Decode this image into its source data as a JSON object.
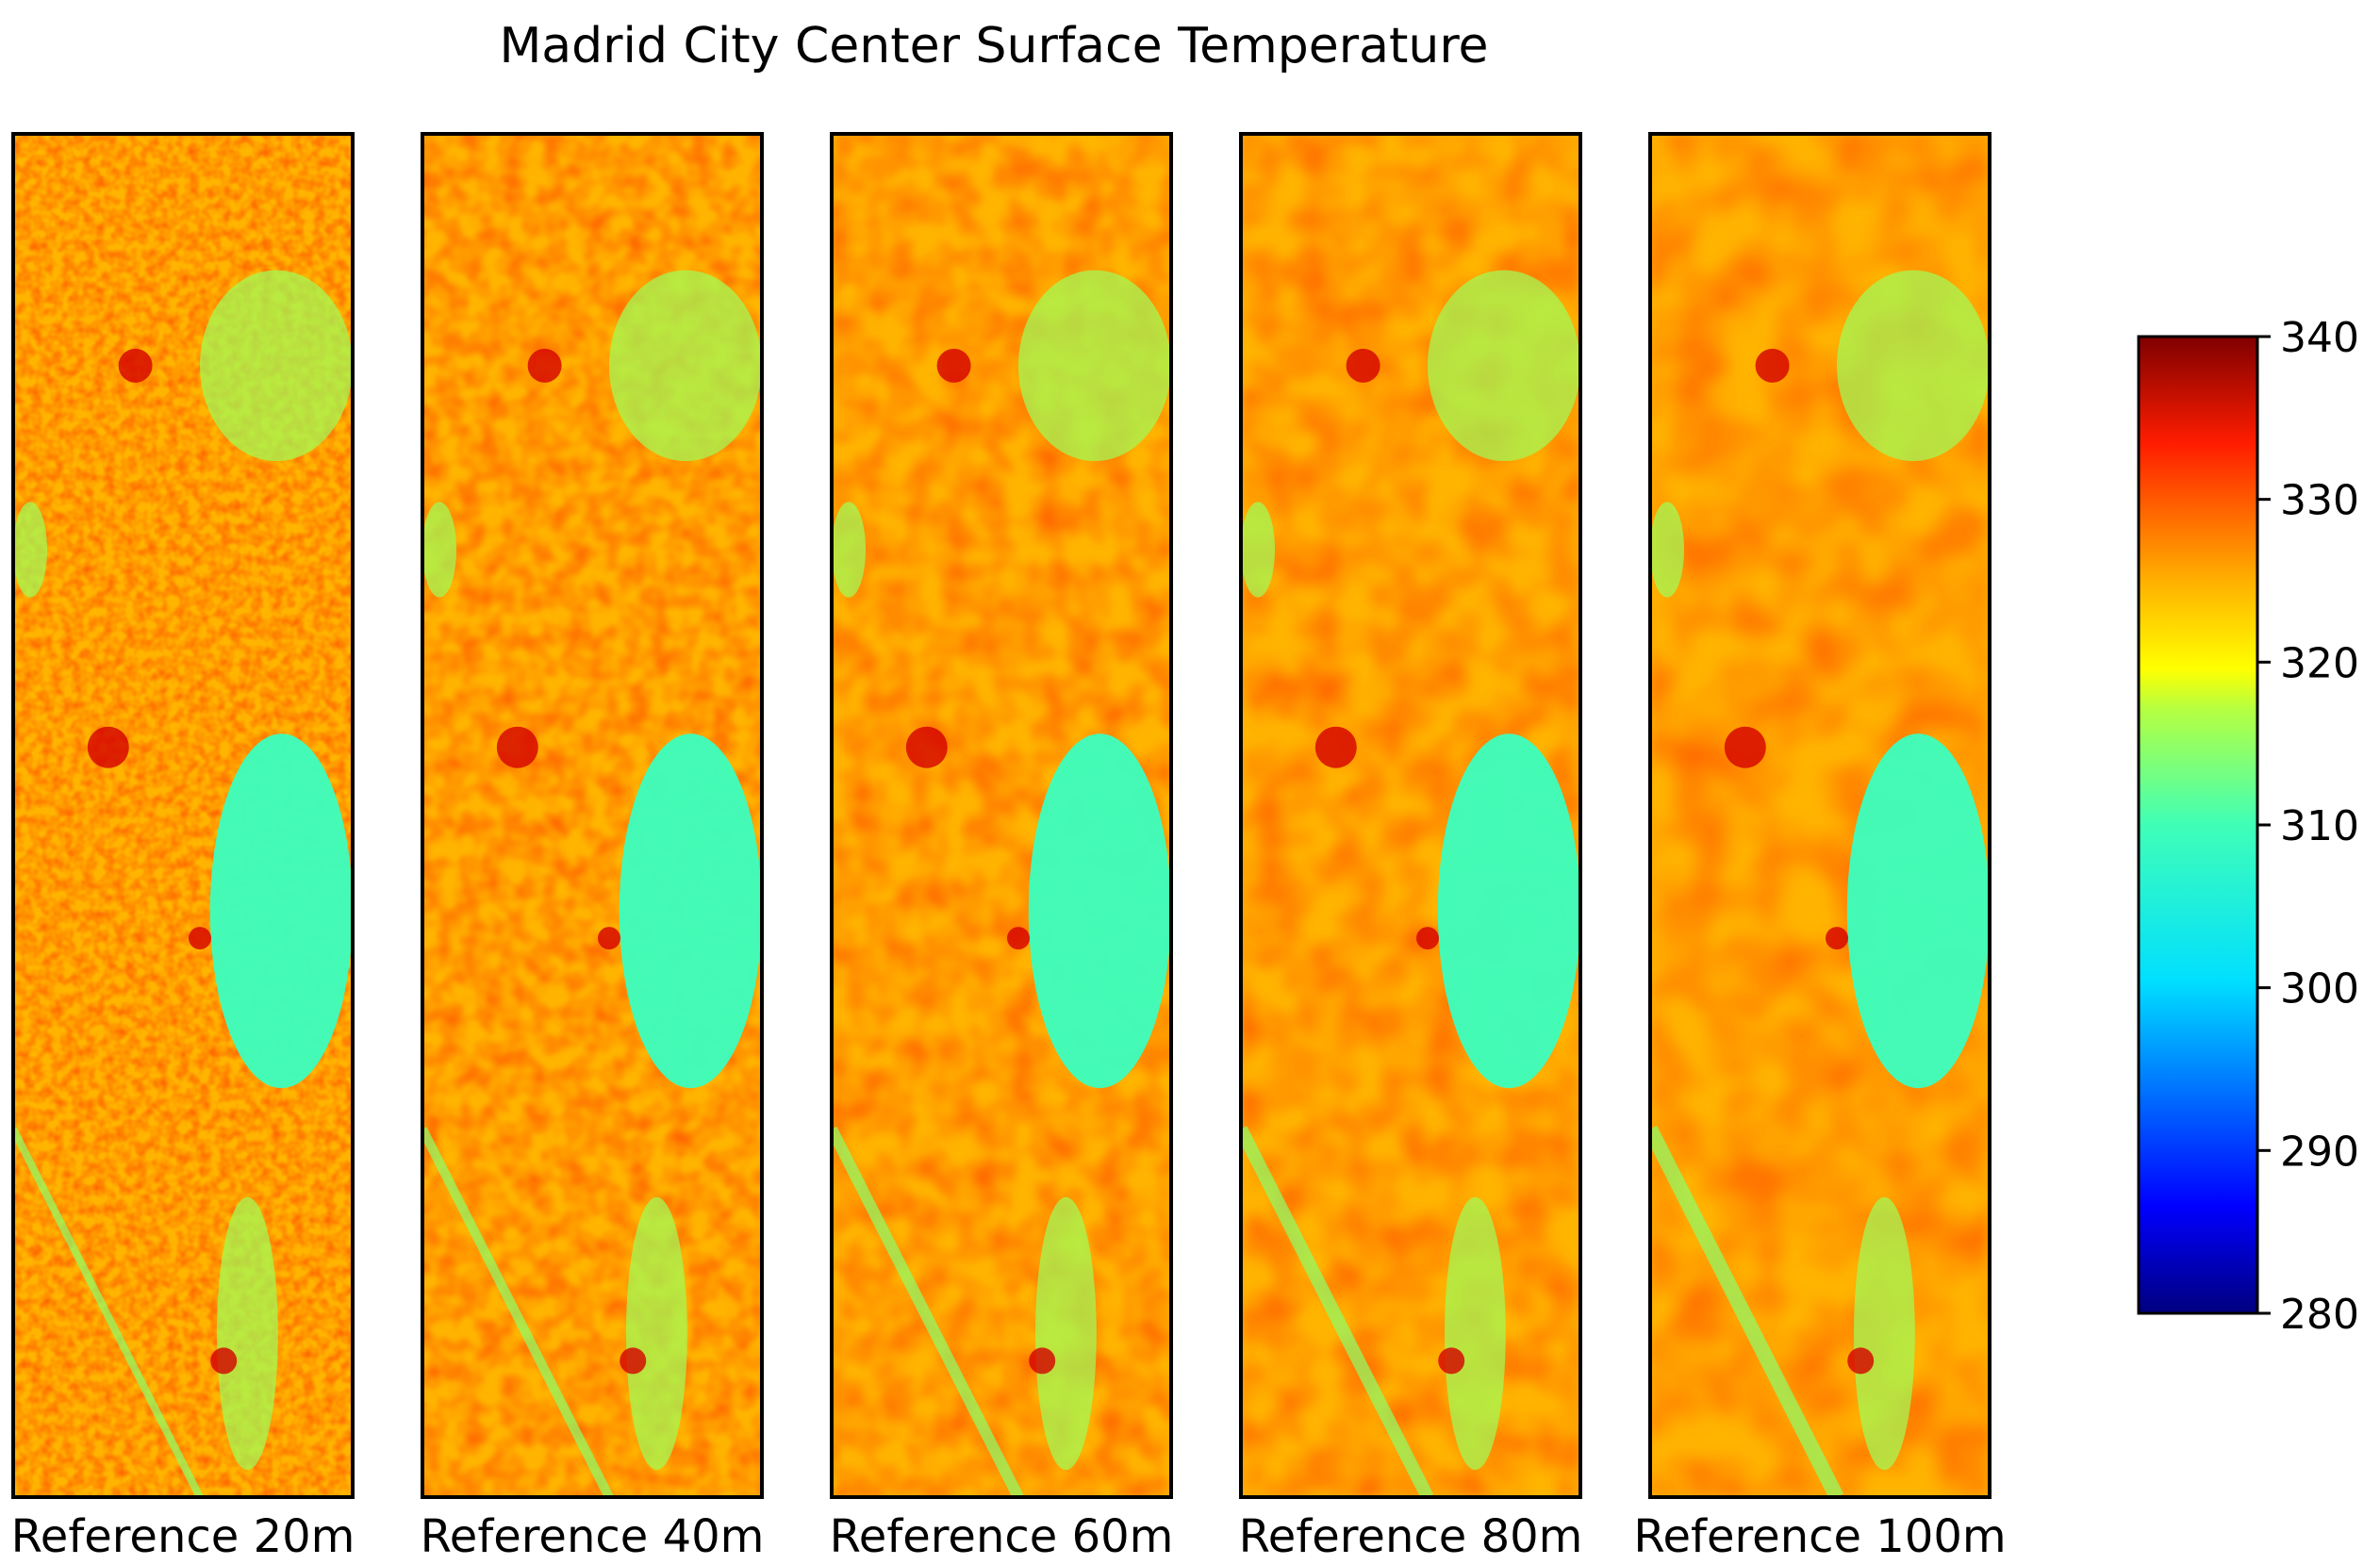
{
  "chart_data": {
    "type": "heatmap",
    "title": "Madrid City Center Surface Temperature",
    "panels": [
      {
        "label": "Reference 20m",
        "resolution_m": 20
      },
      {
        "label": "Reference 40m",
        "resolution_m": 40
      },
      {
        "label": "Reference 60m",
        "resolution_m": 60
      },
      {
        "label": "Reference 80m",
        "resolution_m": 80
      },
      {
        "label": "Reference 100m",
        "resolution_m": 100
      }
    ],
    "colorbar": {
      "colormap": "jet",
      "range": [
        280,
        340
      ],
      "ticks": [
        "340",
        "330",
        "320",
        "310",
        "300",
        "290",
        "280"
      ]
    }
  }
}
